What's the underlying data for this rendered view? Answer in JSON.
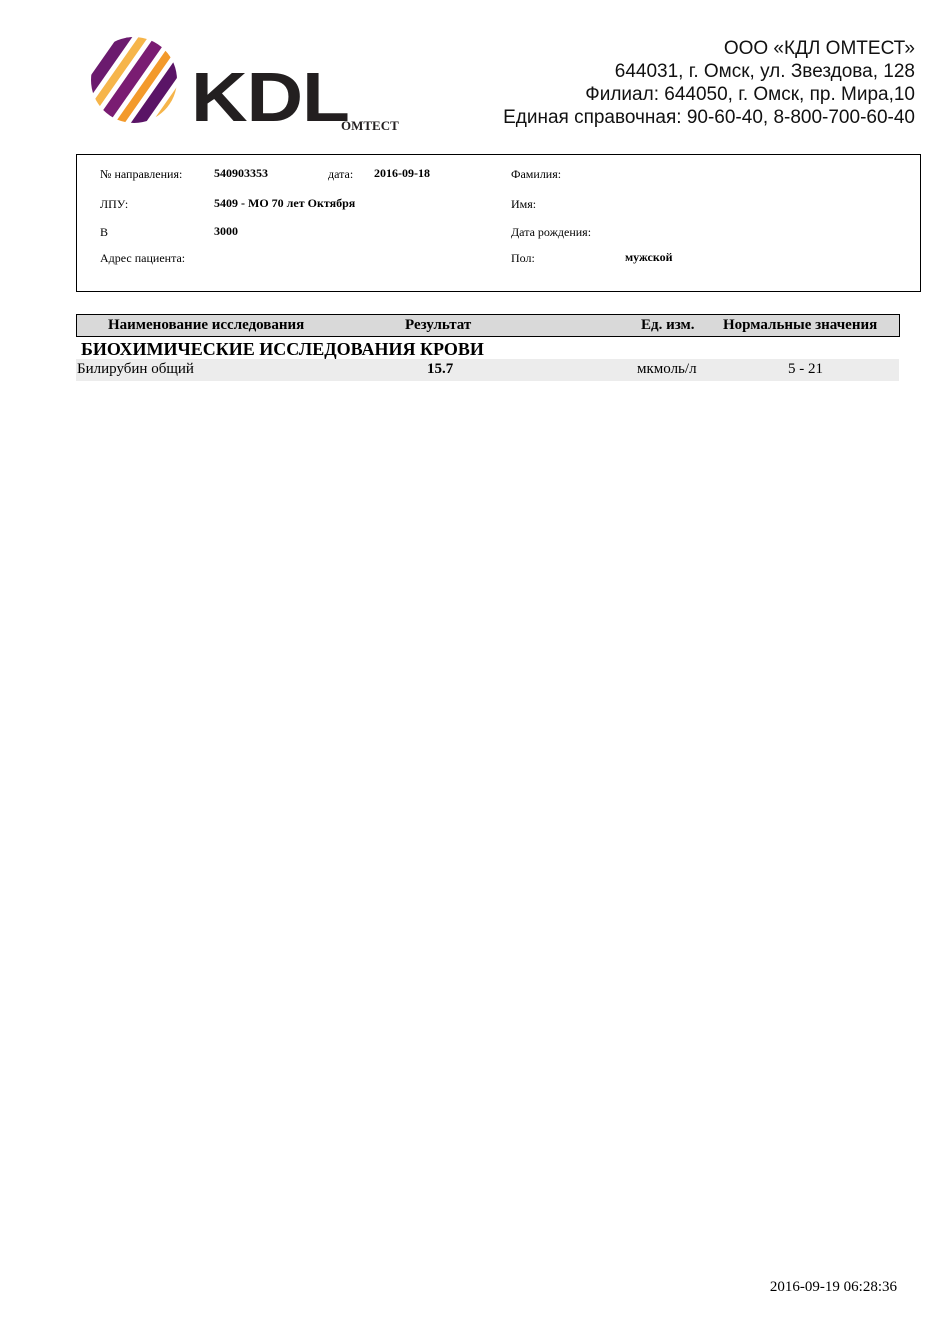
{
  "logo": {
    "brand": "KDL",
    "sub": "ОМТЕСТ",
    "colors": {
      "purple": "#6b1a6e",
      "orange": "#f39a2b",
      "dark": "#231f20"
    }
  },
  "org": {
    "name": "ООО «КДЛ ОМТЕСТ»",
    "address": "644031,  г. Омск, ул. Звездова, 128",
    "branch": "Филиал: 644050,  г. Омск, пр. Мира,10",
    "phone": "Единая справочная: 90-60-40, 8-800-700-60-40"
  },
  "patient": {
    "referral_label": "№ направления:",
    "referral_value": "540903353",
    "date_label": "дата:",
    "date_value": "2016-09-18",
    "lpu_label": "ЛПУ:",
    "lpu_value": "5409 - МО 70 лет Октября",
    "b_label": "В",
    "b_value": "3000",
    "address_label": "Адрес пациента:",
    "surname_label": "Фамилия:",
    "name_label": "Имя:",
    "birth_label": "Дата рождения:",
    "sex_label": "Пол:",
    "sex_value": "мужской"
  },
  "table": {
    "headers": [
      "Наименование исследования",
      "Результат",
      "Ед. изм.",
      "Нормальные значения"
    ],
    "section": "БИОХИМИЧЕСКИЕ ИССЛЕДОВАНИЯ КРОВИ",
    "rows": [
      {
        "name": "Билирубин общий",
        "result": "15.7",
        "unit": "мкмоль/л",
        "norm": "5 - 21"
      }
    ]
  },
  "footer": {
    "timestamp": "2016-09-19 06:28:36"
  }
}
